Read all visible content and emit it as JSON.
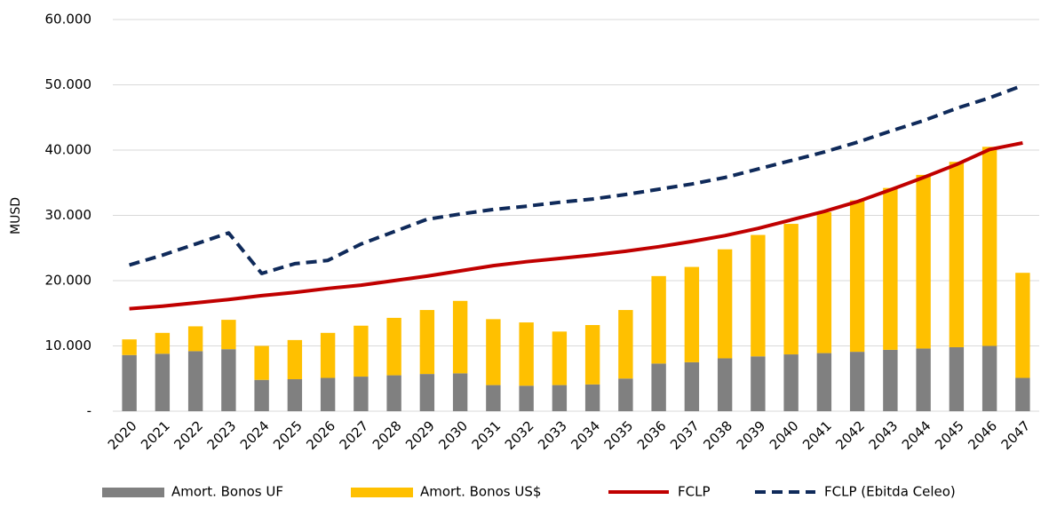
{
  "chart_data": {
    "type": "combo",
    "stacked": true,
    "y_label": "MUSD",
    "categories": [
      "2020",
      "2021",
      "2022",
      "2023",
      "2024",
      "2025",
      "2026",
      "2027",
      "2028",
      "2029",
      "2030",
      "2031",
      "2032",
      "2033",
      "2034",
      "2035",
      "2036",
      "2037",
      "2038",
      "2039",
      "2040",
      "2041",
      "2042",
      "2043",
      "2044",
      "2045",
      "2046",
      "2047"
    ],
    "series": [
      {
        "name": "Amort. Bonos UF",
        "type": "bar",
        "color": "#808080",
        "values": [
          8600,
          8800,
          9200,
          9500,
          4800,
          4900,
          5100,
          5300,
          5500,
          5700,
          5800,
          4000,
          3900,
          4000,
          4100,
          5000,
          7300,
          7500,
          8100,
          8400,
          8700,
          8900,
          9100,
          9400,
          9600,
          9800,
          10000,
          5100
        ]
      },
      {
        "name": "Amort. Bonos US$",
        "type": "bar",
        "color": "#ffc000",
        "values": [
          2400,
          3200,
          3800,
          4500,
          5200,
          6000,
          6900,
          7800,
          8800,
          9800,
          11100,
          10100,
          9700,
          8200,
          9100,
          10500,
          13400,
          14600,
          16700,
          18600,
          20000,
          21600,
          23200,
          24800,
          26600,
          28400,
          30500,
          16100
        ]
      },
      {
        "name": "FCLP",
        "type": "line",
        "color": "#c00000",
        "dashed": false,
        "values": [
          15700,
          16100,
          16600,
          17100,
          17700,
          18200,
          18800,
          19300,
          20000,
          20700,
          21500,
          22300,
          22900,
          23400,
          23900,
          24500,
          25200,
          26000,
          26900,
          28000,
          29300,
          30600,
          32100,
          33900,
          35800,
          37800,
          40100,
          41100
        ]
      },
      {
        "name": "FCLP (Ebitda Celeo)",
        "type": "line",
        "color": "#0f2a5a",
        "dashed": true,
        "values": [
          22400,
          23900,
          25600,
          27300,
          21100,
          22600,
          23100,
          25600,
          27500,
          29400,
          30200,
          30900,
          31400,
          32000,
          32500,
          33200,
          34000,
          34800,
          35800,
          37100,
          38400,
          39700,
          41200,
          42900,
          44500,
          46400,
          48000,
          49900
        ]
      }
    ],
    "ylim": [
      0,
      60000
    ],
    "yticks": [
      {
        "value": 0,
        "label": "-"
      },
      {
        "value": 10000,
        "label": "10.000"
      },
      {
        "value": 20000,
        "label": "20.000"
      },
      {
        "value": 30000,
        "label": "30.000"
      },
      {
        "value": 40000,
        "label": "40.000"
      },
      {
        "value": 50000,
        "label": "50.000"
      },
      {
        "value": 60000,
        "label": "60.000"
      }
    ],
    "grid": true,
    "legend": "bottom"
  }
}
